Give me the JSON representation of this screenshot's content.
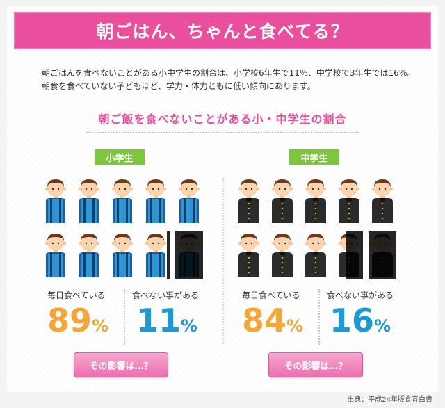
{
  "title": "朝ごはん、ちゃんと食べてる？",
  "intro": {
    "line1": "朝ごはんを食べないことがある小中学生の割合は、小学校6年生で11％、中学校で3年生では16％。",
    "line2": "朝食を食べていない子どもほど、学力・体力ともに低い傾向にあります。"
  },
  "subtitle": "朝ご飯を食べないことがある小・中学生の割合",
  "elementary": {
    "label": "小学生",
    "eats_label": "毎日食べている",
    "eats_value": "89",
    "skips_label": "食べない事がある",
    "skips_value": "11",
    "unit": "%",
    "button": "その影響は…？",
    "skip_fraction_of_figures": 0.11
  },
  "junior": {
    "label": "中学生",
    "eats_label": "毎日食べている",
    "eats_value": "84",
    "skips_label": "食べない事がある",
    "skips_value": "16",
    "unit": "%",
    "button": "その影響は…？",
    "skip_fraction_of_figures": 0.16
  },
  "source": "出典：平成24年版食育白書",
  "colors": {
    "pink": "#ea4f9e",
    "green": "#7fc63f",
    "orange": "#f4a636",
    "blue": "#1d9ad6",
    "shirt_blue": "#2f97d8",
    "uniform_black": "#2b2b2b"
  }
}
